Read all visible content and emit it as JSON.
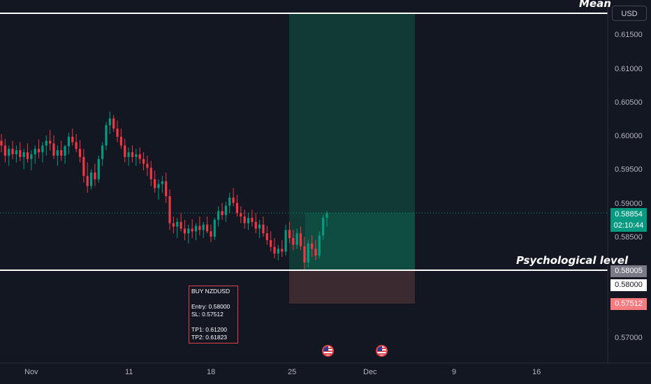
{
  "currency_button": "USD",
  "levels": {
    "mean_label": "Mean",
    "psych_label": "Psychological level"
  },
  "last_price": {
    "value": "0.58854",
    "countdown": "02:10:44",
    "color": "#089981"
  },
  "psych_tag": "0.58005",
  "entry_tag": "0.58000",
  "sl_tag": "0.57512",
  "note": {
    "line1": "BUY NZDUSD",
    "line2": "Entry:  0.58000",
    "line3": "SL:    0.57512",
    "line4": "TP1: 0.61200",
    "line5": "TP2: 0.61823"
  },
  "colors": {
    "up": "#089981",
    "down": "#f23645",
    "bg": "#131722",
    "profit_zone": "#113a34",
    "loss_zone": "#3c2a31"
  },
  "icons": [
    "us-flag-icon",
    "us-flag-icon"
  ],
  "chart_data": {
    "type": "candlestick",
    "symbol": "NZDUSD",
    "x_ticks": [
      "Nov",
      "11",
      "18",
      "25",
      "Dec",
      "9",
      "16"
    ],
    "y_ticks": [
      "0.61500",
      "0.61000",
      "0.60500",
      "0.60000",
      "0.59500",
      "0.59000",
      "0.58500",
      "0.57000"
    ],
    "ylim": [
      0.5685,
      0.6185
    ],
    "mean_level": 0.6176,
    "psychological_level": 0.58005,
    "position": {
      "side": "long",
      "entry": 0.58,
      "stop_loss": 0.57512,
      "take_profit": 0.6176
    },
    "last_price": 0.58854,
    "candles": [
      [
        0.5992,
        0.6002,
        0.5975,
        0.5985
      ],
      [
        0.5985,
        0.5995,
        0.596,
        0.597
      ],
      [
        0.597,
        0.5985,
        0.5955,
        0.598
      ],
      [
        0.598,
        0.5992,
        0.5965,
        0.5972
      ],
      [
        0.5972,
        0.5985,
        0.596,
        0.5978
      ],
      [
        0.5978,
        0.599,
        0.5962,
        0.5968
      ],
      [
        0.5968,
        0.598,
        0.595,
        0.5975
      ],
      [
        0.5975,
        0.5988,
        0.596,
        0.5965
      ],
      [
        0.5965,
        0.5978,
        0.5948,
        0.5972
      ],
      [
        0.5972,
        0.5985,
        0.5958,
        0.598
      ],
      [
        0.598,
        0.5994,
        0.5966,
        0.5975
      ],
      [
        0.5975,
        0.599,
        0.596,
        0.5985
      ],
      [
        0.5985,
        0.6,
        0.597,
        0.5992
      ],
      [
        0.5992,
        0.6008,
        0.5978,
        0.5988
      ],
      [
        0.5988,
        0.6,
        0.5965,
        0.597
      ],
      [
        0.597,
        0.5985,
        0.5955,
        0.5978
      ],
      [
        0.5978,
        0.5992,
        0.5962,
        0.597
      ],
      [
        0.597,
        0.5986,
        0.5958,
        0.5984
      ],
      [
        0.5984,
        0.6004,
        0.5972,
        0.5998
      ],
      [
        0.5998,
        0.601,
        0.5985,
        0.599
      ],
      [
        0.599,
        0.6002,
        0.5975,
        0.598
      ],
      [
        0.598,
        0.5993,
        0.596,
        0.5968
      ],
      [
        0.5968,
        0.598,
        0.593,
        0.594
      ],
      [
        0.594,
        0.596,
        0.5915,
        0.5925
      ],
      [
        0.5925,
        0.595,
        0.592,
        0.5945
      ],
      [
        0.5945,
        0.5958,
        0.5925,
        0.5935
      ],
      [
        0.5935,
        0.597,
        0.593,
        0.5965
      ],
      [
        0.5965,
        0.599,
        0.5955,
        0.5985
      ],
      [
        0.5985,
        0.602,
        0.5978,
        0.6015
      ],
      [
        0.6015,
        0.6035,
        0.6002,
        0.6025
      ],
      [
        0.6025,
        0.603,
        0.6005,
        0.601
      ],
      [
        0.601,
        0.6022,
        0.599,
        0.5998
      ],
      [
        0.5998,
        0.601,
        0.598,
        0.5985
      ],
      [
        0.5985,
        0.5995,
        0.596,
        0.5968
      ],
      [
        0.5968,
        0.5982,
        0.5955,
        0.5975
      ],
      [
        0.5975,
        0.5985,
        0.596,
        0.5968
      ],
      [
        0.5968,
        0.598,
        0.5955,
        0.5972
      ],
      [
        0.5972,
        0.5982,
        0.5958,
        0.5965
      ],
      [
        0.5965,
        0.5975,
        0.5948,
        0.5958
      ],
      [
        0.5958,
        0.597,
        0.594,
        0.5952
      ],
      [
        0.5952,
        0.5962,
        0.5925,
        0.5935
      ],
      [
        0.5935,
        0.5948,
        0.5915,
        0.5922
      ],
      [
        0.5922,
        0.5935,
        0.5905,
        0.5928
      ],
      [
        0.5928,
        0.594,
        0.5915,
        0.5932
      ],
      [
        0.5932,
        0.5945,
        0.59,
        0.591
      ],
      [
        0.591,
        0.592,
        0.586,
        0.587
      ],
      [
        0.587,
        0.588,
        0.5855,
        0.5865
      ],
      [
        0.5865,
        0.5878,
        0.5848,
        0.5872
      ],
      [
        0.5872,
        0.5885,
        0.5858,
        0.5862
      ],
      [
        0.5862,
        0.5875,
        0.5845,
        0.5855
      ],
      [
        0.5855,
        0.5868,
        0.584,
        0.5862
      ],
      [
        0.5862,
        0.5876,
        0.5848,
        0.5858
      ],
      [
        0.5858,
        0.587,
        0.5845,
        0.5866
      ],
      [
        0.5866,
        0.588,
        0.5852,
        0.586
      ],
      [
        0.586,
        0.5872,
        0.5848,
        0.5868
      ],
      [
        0.5868,
        0.588,
        0.5855,
        0.5858
      ],
      [
        0.5858,
        0.5868,
        0.5842,
        0.585
      ],
      [
        0.585,
        0.5878,
        0.5845,
        0.5875
      ],
      [
        0.5875,
        0.5895,
        0.5865,
        0.5888
      ],
      [
        0.5888,
        0.59,
        0.5875,
        0.5882
      ],
      [
        0.5882,
        0.5902,
        0.5872,
        0.5896
      ],
      [
        0.5896,
        0.5915,
        0.5885,
        0.5908
      ],
      [
        0.5908,
        0.5922,
        0.5895,
        0.59
      ],
      [
        0.59,
        0.5912,
        0.588,
        0.5885
      ],
      [
        0.5885,
        0.5895,
        0.587,
        0.588
      ],
      [
        0.588,
        0.589,
        0.5862,
        0.587
      ],
      [
        0.587,
        0.5885,
        0.586,
        0.5878
      ],
      [
        0.5878,
        0.589,
        0.5865,
        0.5872
      ],
      [
        0.5872,
        0.5885,
        0.5855,
        0.5862
      ],
      [
        0.5862,
        0.5875,
        0.5848,
        0.5868
      ],
      [
        0.5868,
        0.588,
        0.585,
        0.5855
      ],
      [
        0.5855,
        0.5866,
        0.5838,
        0.5845
      ],
      [
        0.5845,
        0.5858,
        0.5828,
        0.5835
      ],
      [
        0.5835,
        0.5848,
        0.5818,
        0.5825
      ],
      [
        0.5825,
        0.5838,
        0.5815,
        0.5832
      ],
      [
        0.5832,
        0.5845,
        0.582,
        0.5828
      ],
      [
        0.5828,
        0.5868,
        0.5822,
        0.586
      ],
      [
        0.586,
        0.5872,
        0.584,
        0.5848
      ],
      [
        0.5848,
        0.586,
        0.583,
        0.5838
      ],
      [
        0.5838,
        0.5862,
        0.5832,
        0.5855
      ],
      [
        0.5855,
        0.5865,
        0.583,
        0.5836
      ],
      [
        0.5836,
        0.585,
        0.58,
        0.5812
      ],
      [
        0.5812,
        0.5845,
        0.5805,
        0.584
      ],
      [
        0.584,
        0.5852,
        0.582,
        0.5832
      ],
      [
        0.5832,
        0.5845,
        0.5815,
        0.5822
      ],
      [
        0.5822,
        0.5858,
        0.5818,
        0.5852
      ],
      [
        0.5852,
        0.5882,
        0.5845,
        0.5878
      ],
      [
        0.5878,
        0.5888,
        0.5865,
        0.5885
      ]
    ]
  }
}
